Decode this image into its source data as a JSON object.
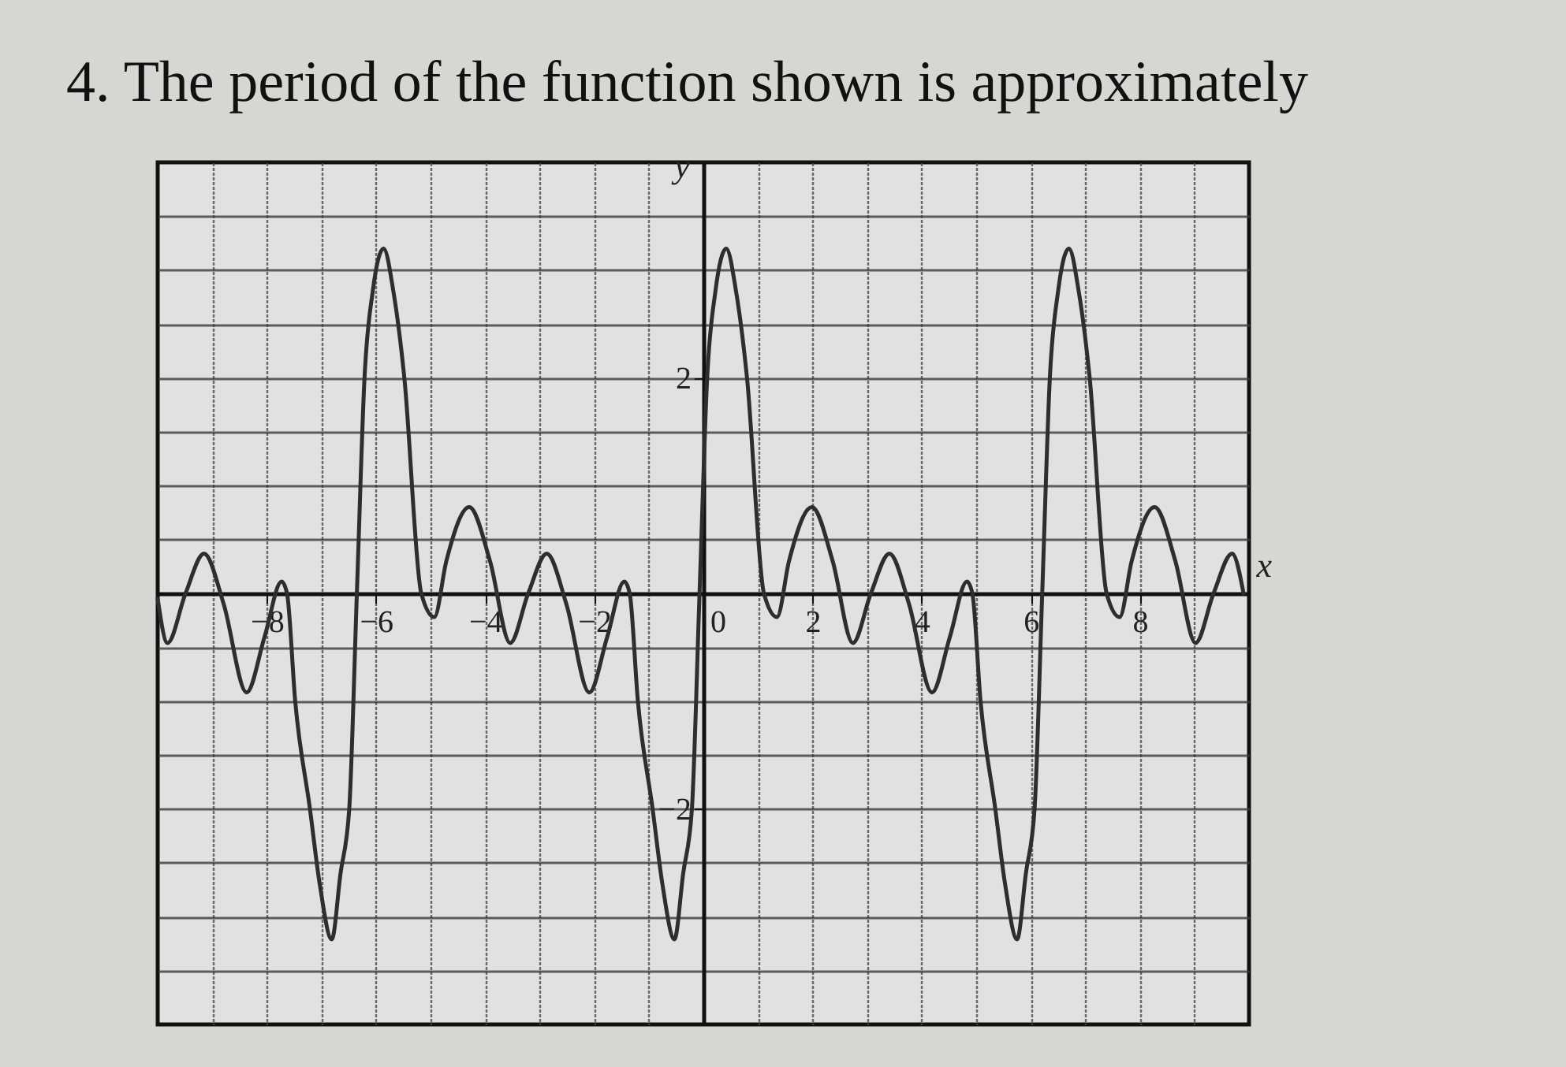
{
  "chart_data": {
    "type": "line",
    "title": "4. The period of the function shown is approximately",
    "xlabel": "x",
    "ylabel": "y",
    "x": [
      -10,
      -9.82,
      -9.49,
      -9.15,
      -8.79,
      -8.37,
      -8.04,
      -7.73,
      -7.63,
      -7.48,
      -7.21,
      -7.03,
      -6.81,
      -6.65,
      -6.49,
      -6.35,
      -6.21,
      -6.06,
      -5.86,
      -5.68,
      -5.48,
      -5.17,
      -4.93,
      -4.71,
      -4.29,
      -3.91,
      -3.54,
      -3.21,
      -2.87,
      -2.51,
      -2.09,
      -1.76,
      -1.45,
      -1.35,
      -1.2,
      -0.93,
      -0.75,
      -0.53,
      -0.37,
      -0.21,
      -0.07,
      0.07,
      0.22,
      0.42,
      0.6,
      0.8,
      1.11,
      1.35,
      1.57,
      1.99,
      2.37,
      2.74,
      3.07,
      3.41,
      3.77,
      4.19,
      4.52,
      4.83,
      4.93,
      5.08,
      5.35,
      5.53,
      5.75,
      5.91,
      6.07,
      6.21,
      6.35,
      6.5,
      6.7,
      6.88,
      7.08,
      7.39,
      7.63,
      7.85,
      8.27,
      8.65,
      9.02,
      9.35,
      9.69,
      9.9
    ],
    "series": [
      {
        "color": "#2e2e2e",
        "values": [
          -0.05,
          -0.46,
          0,
          0.37,
          -0.1,
          -0.92,
          -0.4,
          0.11,
          0,
          -1,
          -2,
          -2.7,
          -3.21,
          -2.6,
          -2,
          0,
          2,
          2.8,
          3.2,
          2.8,
          2,
          0,
          -0.22,
          0.3,
          0.8,
          0.3,
          -0.46,
          0,
          0.37,
          -0.1,
          -0.92,
          -0.4,
          0.11,
          0,
          -1,
          -2,
          -2.7,
          -3.21,
          -2.6,
          -2,
          0,
          2,
          2.8,
          3.2,
          2.8,
          2,
          0,
          -0.22,
          0.3,
          0.8,
          0.3,
          -0.46,
          0,
          0.37,
          -0.1,
          -0.92,
          -0.4,
          0.11,
          0,
          -1,
          -2,
          -2.7,
          -3.21,
          -2.6,
          -2,
          0,
          2,
          2.8,
          3.2,
          2.8,
          2,
          0,
          -0.22,
          0.3,
          0.8,
          0.3,
          -0.46,
          0,
          0.37,
          0
        ]
      }
    ],
    "xlim": [
      -10,
      10
    ],
    "xticks": [
      {
        "value": -9,
        "label": null
      },
      -8,
      {
        "value": -7,
        "label": null
      },
      -6,
      {
        "value": -5,
        "label": null
      },
      -4,
      {
        "value": -3,
        "label": null
      },
      -2,
      {
        "value": -1,
        "label": null
      },
      0,
      {
        "value": 1,
        "label": null
      },
      2,
      {
        "value": 3,
        "label": null
      },
      4,
      {
        "value": 5,
        "label": null
      },
      6,
      {
        "value": 7,
        "label": null
      },
      8,
      {
        "value": 9,
        "label": null
      }
    ],
    "ylim": [
      -4,
      4
    ],
    "yticks": [
      {
        "value": -3.5,
        "label": null
      },
      {
        "value": -3,
        "label": null
      },
      {
        "value": -2.5,
        "label": null
      },
      -2,
      {
        "value": -1.5,
        "label": null
      },
      {
        "value": -1,
        "label": null
      },
      {
        "value": -0.5,
        "label": null
      },
      {
        "value": 0.5,
        "label": null
      },
      {
        "value": 1,
        "label": null
      },
      {
        "value": 1.5,
        "label": null
      },
      2,
      {
        "value": 2.5,
        "label": null
      },
      {
        "value": 3,
        "label": null
      },
      {
        "value": 3.5,
        "label": null
      }
    ],
    "grid": true,
    "marker": "none",
    "line_style": "solid"
  }
}
